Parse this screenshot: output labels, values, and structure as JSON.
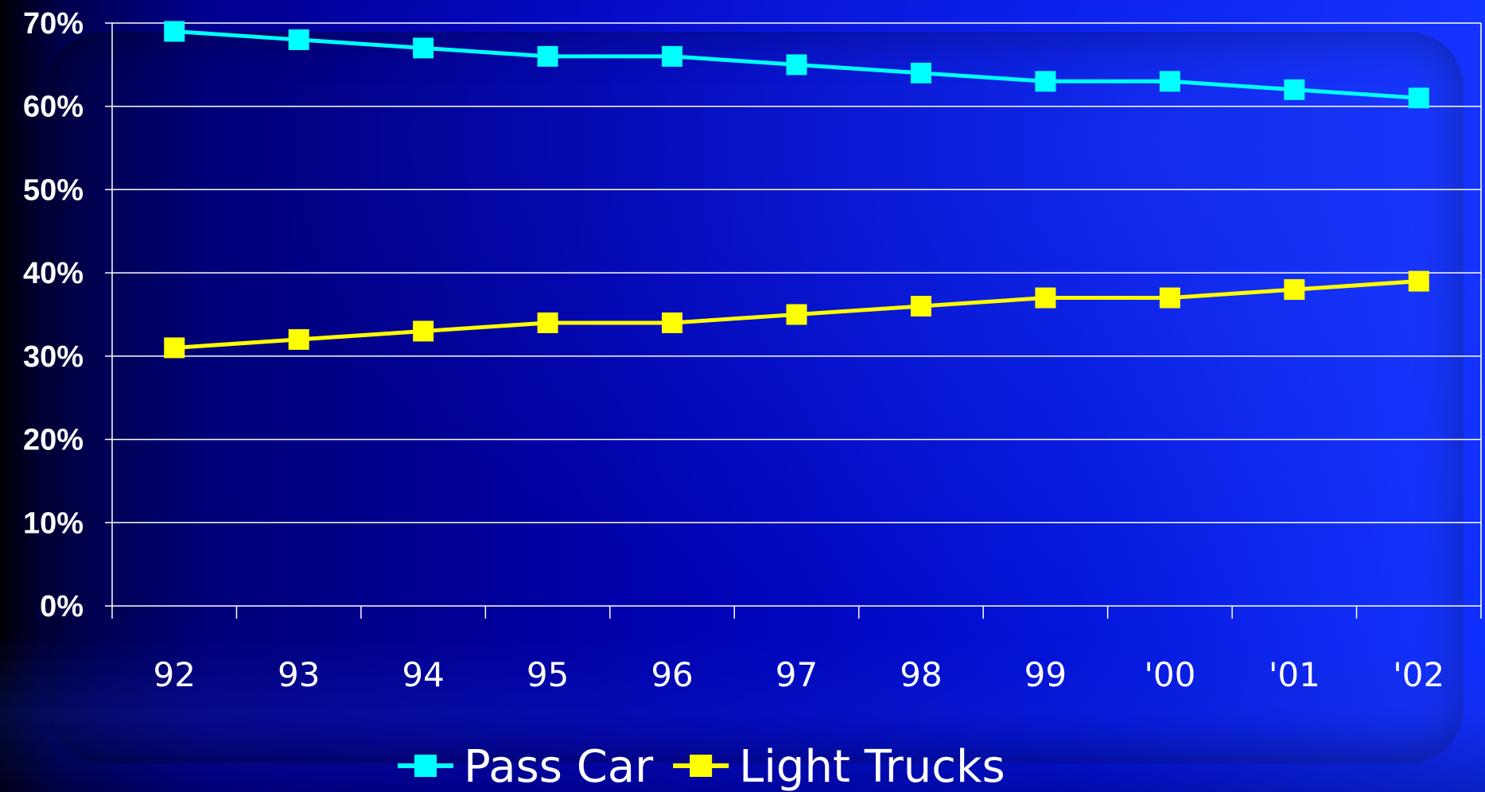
{
  "chart_data": {
    "type": "line",
    "categories": [
      "92",
      "93",
      "94",
      "95",
      "96",
      "97",
      "98",
      "99",
      "'00",
      "'01",
      "'02"
    ],
    "series": [
      {
        "name": "Pass Car",
        "color": "#00ffff",
        "marker": "square",
        "values": [
          69,
          68,
          67,
          66,
          66,
          65,
          64,
          63,
          63,
          62,
          61
        ]
      },
      {
        "name": "Light Trucks",
        "color": "#ffff00",
        "marker": "square",
        "values": [
          31,
          32,
          33,
          34,
          34,
          35,
          36,
          37,
          37,
          38,
          39
        ]
      }
    ],
    "y_ticks": [
      "0%",
      "10%",
      "20%",
      "30%",
      "40%",
      "50%",
      "60%",
      "70%"
    ],
    "ylim": [
      0,
      70
    ],
    "grid": true,
    "legend_position": "bottom",
    "title": "",
    "xlabel": "",
    "ylabel": ""
  }
}
